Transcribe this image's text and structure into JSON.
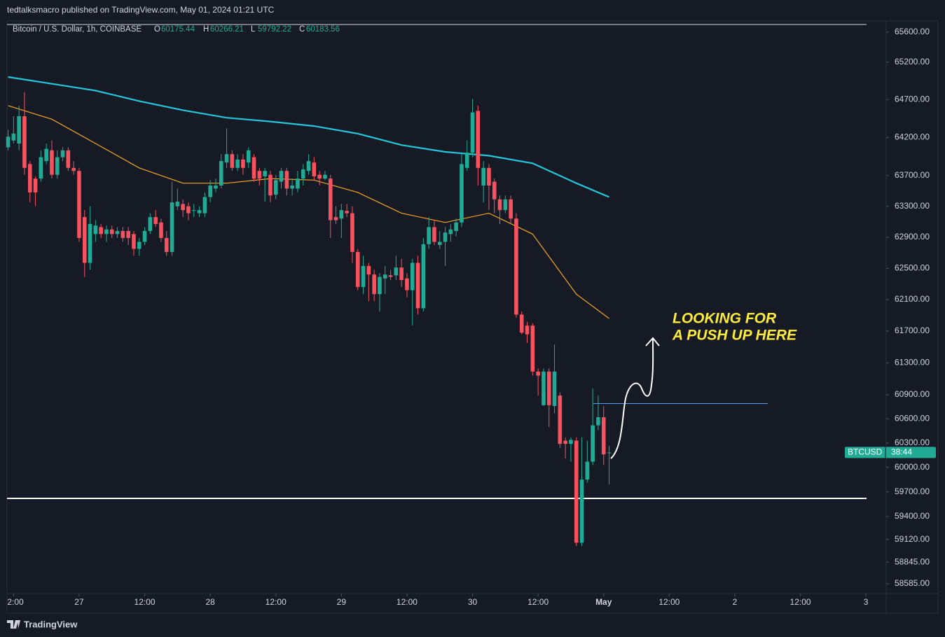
{
  "chart_data": {
    "type": "candlestick",
    "source": "tedtalksmacro published on TradingView.com, May 01, 2024 01:21 UTC",
    "title": "Bitcoin / U.S. Dollar, 1h, COINBASE",
    "ohlc_labels": [
      "O",
      "H",
      "L",
      "C"
    ],
    "footer": "TradingView",
    "symbol": "BTCUSD",
    "countdown": "38:44",
    "annotation": [
      "LOOKING FOR",
      "A PUSH UP HERE"
    ],
    "annotation_color": "#ffeb3b",
    "up_color": "#22ab94",
    "down_color": "#f7525f",
    "log_scale": true,
    "x": [
      -13,
      -12,
      -11,
      -10,
      -9,
      -8,
      -7,
      -6,
      -5,
      -4,
      -3,
      -2,
      -1,
      0,
      1,
      2,
      3,
      4,
      5,
      6,
      7,
      8,
      9,
      10,
      11,
      12,
      13,
      14,
      15,
      16,
      17,
      18,
      19,
      20,
      21,
      22,
      23,
      24,
      25,
      26,
      27,
      28,
      29,
      30,
      31,
      32,
      33,
      34,
      35,
      36,
      37,
      38,
      39,
      40,
      41,
      42,
      43,
      44,
      45,
      46,
      47,
      48,
      49,
      50,
      51,
      52,
      53,
      54,
      55,
      56,
      57,
      58,
      59,
      60,
      61,
      62,
      63,
      64,
      65,
      66,
      67,
      68,
      69,
      70,
      71,
      72,
      73,
      74,
      75,
      76,
      77,
      78,
      79,
      80,
      81,
      82,
      83,
      84,
      85,
      86,
      87,
      88,
      89,
      90,
      91,
      92,
      93,
      94,
      95,
      96,
      97
    ],
    "open": [
      64070,
      64160,
      64120,
      64480,
      63850,
      63660,
      63660,
      63890,
      64030,
      63710,
      63940,
      64030,
      63800,
      63760,
      63160,
      62570,
      62940,
      63030,
      62940,
      63000,
      62940,
      62980,
      62980,
      62940,
      62750,
      62840,
      62980,
      63160,
      63090,
      62890,
      62710,
      63300,
      63330,
      63300,
      63240,
      63210,
      63210,
      63420,
      63530,
      63570,
      63870,
      63980,
      63800,
      63910,
      63870,
      63940,
      63760,
      63690,
      63710,
      63450,
      63620,
      63760,
      63530,
      63530,
      63660,
      63760,
      63870,
      63710,
      63660,
      63660,
      63160,
      63140,
      63240,
      63210,
      62710,
      62260,
      62530,
      62420,
      62170,
      62370,
      62410,
      62410,
      62510,
      62370,
      62220,
      62570,
      61990,
      62810,
      63030,
      62800,
      62840,
      62940,
      62980,
      63090,
      63800,
      64000,
      64550,
      63570,
      63800,
      63620,
      63390,
      63250,
      63390,
      63140,
      61910,
      61770,
      61770,
      61190,
      60770,
      61190,
      60760,
      60890,
      60330,
      60290,
      60330,
      59080,
      59850,
      60070,
      60520,
      60620,
      60175.44
    ],
    "high": [
      64300,
      64480,
      64620,
      64800,
      63890,
      63690,
      64030,
      64120,
      64160,
      64030,
      64070,
      64070,
      63890,
      63800,
      63250,
      63300,
      63120,
      63070,
      63050,
      63050,
      63030,
      63030,
      63030,
      62980,
      62890,
      63030,
      63210,
      63250,
      63140,
      62980,
      63620,
      63530,
      63390,
      63350,
      63330,
      63300,
      63480,
      63640,
      63660,
      63980,
      64320,
      64030,
      63980,
      63980,
      64070,
      63980,
      63800,
      63800,
      63760,
      63710,
      63800,
      63800,
      63660,
      63760,
      63850,
      63980,
      63940,
      63760,
      63760,
      63710,
      63300,
      63330,
      63330,
      63300,
      62750,
      62660,
      62570,
      62480,
      62440,
      62530,
      62480,
      62660,
      62620,
      62440,
      62620,
      62660,
      62890,
      63160,
      63120,
      62980,
      63030,
      63070,
      63140,
      63980,
      64160,
      64710,
      64620,
      63890,
      63850,
      63660,
      63440,
      63440,
      63440,
      63210,
      61950,
      61820,
      61800,
      61230,
      61230,
      61230,
      61530,
      60930,
      60370,
      60370,
      60370,
      60370,
      60330,
      60980,
      60890,
      60760,
      60266.21
    ],
    "low": [
      64030,
      64120,
      64030,
      63710,
      63350,
      63300,
      63620,
      63850,
      63660,
      63660,
      63890,
      63760,
      63710,
      62840,
      62390,
      62480,
      62840,
      62890,
      62840,
      62890,
      62890,
      62840,
      62800,
      62660,
      62660,
      62800,
      62940,
      63030,
      62840,
      62660,
      62660,
      63250,
      63160,
      63120,
      63160,
      63160,
      63160,
      63350,
      63480,
      63530,
      63800,
      63760,
      63760,
      63710,
      63800,
      63620,
      63570,
      63360,
      63350,
      63390,
      63530,
      63440,
      63440,
      63480,
      63570,
      63710,
      63640,
      63570,
      63640,
      62890,
      63070,
      62890,
      63160,
      62570,
      62220,
      62170,
      62080,
      62080,
      61950,
      62170,
      62350,
      62350,
      62260,
      62130,
      61770,
      61910,
      61950,
      62750,
      62800,
      62750,
      62530,
      62840,
      62910,
      63030,
      63760,
      63940,
      63570,
      63350,
      63250,
      63210,
      63070,
      63210,
      63070,
      61870,
      61660,
      61550,
      61140,
      60890,
      60760,
      60500,
      60670,
      60240,
      60110,
      60070,
      59040,
      59040,
      59810,
      60030,
      60460,
      60030,
      59792.22
    ],
    "close": [
      64210,
      64250,
      64480,
      63800,
      63480,
      63480,
      63940,
      64050,
      63710,
      63940,
      64030,
      63800,
      63760,
      62890,
      62570,
      63070,
      63050,
      62940,
      63000,
      62940,
      62980,
      62890,
      62890,
      62750,
      62840,
      62980,
      63160,
      63070,
      62890,
      62710,
      63350,
      63360,
      63250,
      63210,
      63250,
      63250,
      63420,
      63570,
      63570,
      63890,
      63980,
      63800,
      63910,
      63800,
      64030,
      63660,
      63660,
      63760,
      63440,
      63640,
      63760,
      63530,
      63570,
      63660,
      63780,
      63890,
      63690,
      63660,
      63710,
      63120,
      63120,
      63250,
      63210,
      62710,
      62260,
      62530,
      62420,
      62170,
      62390,
      62420,
      62390,
      62510,
      62350,
      62220,
      62570,
      61990,
      62810,
      63030,
      62840,
      62840,
      62960,
      63000,
      63090,
      63850,
      64000,
      64530,
      63800,
      63800,
      63570,
      63390,
      63250,
      63390,
      63140,
      61910,
      61680,
      61660,
      61190,
      61140,
      61190,
      60770,
      61190,
      60290,
      60290,
      60340,
      59080,
      59850,
      60070,
      60520,
      60620,
      60160,
      60183.56
    ],
    "lines": [
      {
        "color": "#26c6da",
        "x": [
          -13,
          -5,
          3,
          11,
          19,
          27,
          35,
          43,
          51,
          59,
          67,
          75,
          83,
          91,
          97
        ],
        "values": [
          65000,
          64910,
          64820,
          64680,
          64560,
          64460,
          64410,
          64350,
          64250,
          64100,
          64010,
          63960,
          63860,
          63600,
          63420
        ]
      },
      {
        "color": "#f5a623",
        "x": [
          -13,
          -5,
          3,
          11,
          19,
          27,
          35,
          43,
          51,
          59,
          67,
          75,
          83,
          91,
          97
        ],
        "values": [
          64620,
          64440,
          64120,
          63800,
          63600,
          63600,
          63660,
          63640,
          63480,
          63210,
          63090,
          63210,
          62940,
          62170,
          61860
        ]
      }
    ],
    "levels": [
      {
        "value": 59620,
        "color": "#ffffff"
      },
      {
        "value": 60790,
        "color": "#5b9cf6"
      }
    ],
    "xlim": [
      -13.2,
      147.7
    ],
    "ylim": [
      58467,
      65751
    ],
    "xticks": [
      {
        "value": -12,
        "label": "2:00"
      },
      {
        "value": 0,
        "label": "27"
      },
      {
        "value": 12,
        "label": "12:00"
      },
      {
        "value": 24,
        "label": "28"
      },
      {
        "value": 36,
        "label": "12:00"
      },
      {
        "value": 48,
        "label": "29"
      },
      {
        "value": 60,
        "label": "12:00"
      },
      {
        "value": 72,
        "label": "30"
      },
      {
        "value": 84,
        "label": "12:00"
      },
      {
        "value": 96,
        "label": "May"
      },
      {
        "value": 108,
        "label": "12:00"
      },
      {
        "value": 120,
        "label": "2"
      },
      {
        "value": 132,
        "label": "12:00"
      },
      {
        "value": 144,
        "label": "3"
      }
    ],
    "yticks": [
      {
        "value": 65600,
        "label": "65600.00"
      },
      {
        "value": 65200,
        "label": "65200.00"
      },
      {
        "value": 64700,
        "label": "64700.00"
      },
      {
        "value": 64200,
        "label": "64200.00"
      },
      {
        "value": 63700,
        "label": "63700.00"
      },
      {
        "value": 63300,
        "label": "63300.00"
      },
      {
        "value": 62900,
        "label": "62900.00"
      },
      {
        "value": 62500,
        "label": "62500.00"
      },
      {
        "value": 62100,
        "label": "62100.00"
      },
      {
        "value": 61700,
        "label": "61700.00"
      },
      {
        "value": 61300,
        "label": "61300.00"
      },
      {
        "value": 60900,
        "label": "60900.00"
      },
      {
        "value": 60600,
        "label": "60600.00"
      },
      {
        "value": 60300,
        "label": "60300.00"
      },
      {
        "value": 60000,
        "label": "60000.00"
      },
      {
        "value": 59700,
        "label": "59700.00"
      },
      {
        "value": 59400,
        "label": "59400.00"
      },
      {
        "value": 59120,
        "label": "59120.00"
      },
      {
        "value": 58845,
        "label": "58845.00"
      },
      {
        "value": 58585,
        "label": "58585.00"
      }
    ]
  }
}
